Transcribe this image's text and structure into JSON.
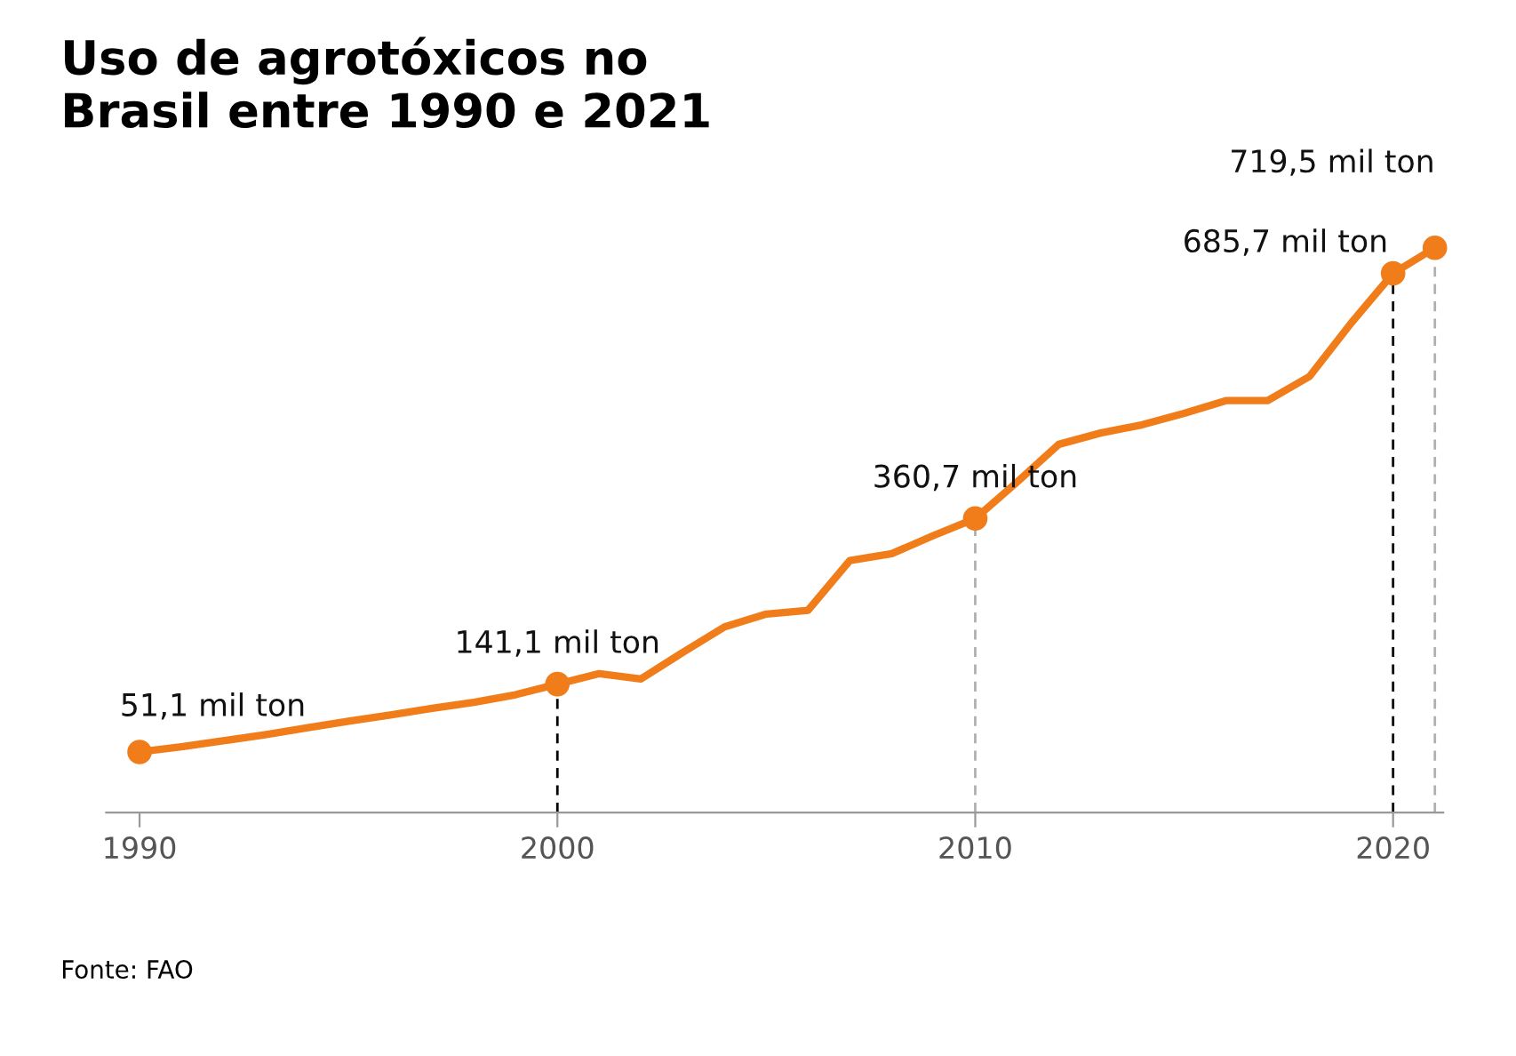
{
  "chart_data": {
    "type": "line",
    "title": "Uso de agrotóxicos no\nBrasil entre 1990 e 2021",
    "x": [
      1990,
      1991,
      1992,
      1993,
      1994,
      1995,
      1996,
      1997,
      1998,
      1999,
      2000,
      2001,
      2002,
      2003,
      2004,
      2005,
      2006,
      2007,
      2008,
      2009,
      2010,
      2011,
      2012,
      2013,
      2014,
      2015,
      2016,
      2017,
      2018,
      2019,
      2020,
      2021
    ],
    "series": [
      {
        "color": "#f07d1a",
        "values": [
          51.1,
          58,
          66,
          74,
          83,
          92,
          100,
          109,
          117,
          127,
          141.1,
          155,
          148,
          183,
          217,
          234,
          239,
          305,
          314,
          338,
          360.7,
          409,
          459,
          474,
          485,
          500,
          517,
          517,
          549,
          620,
          685.7,
          719.5
        ],
        "value_labels": [
          "51,1 mil ton",
          null,
          null,
          null,
          null,
          null,
          null,
          null,
          null,
          null,
          "141,1 mil ton",
          null,
          null,
          null,
          null,
          null,
          null,
          null,
          null,
          null,
          "360,7 mil ton",
          null,
          null,
          null,
          null,
          null,
          null,
          null,
          null,
          null,
          "685,7 mil ton",
          "719,5 mil ton"
        ]
      }
    ],
    "line_style": "solid",
    "xlim": [
      1989.2,
      2021.2
    ],
    "xticks": [
      1990,
      2000,
      2010,
      2020
    ],
    "tick_labels": "x",
    "grid": false,
    "ref_lines": [
      {
        "axis": "x",
        "value": 2000,
        "color": "#000000",
        "line_style": "dashed"
      },
      {
        "axis": "x",
        "value": 2010,
        "color": "#b0b0b0",
        "line_style": "dashed"
      },
      {
        "axis": "x",
        "value": 2020,
        "color": "#000000",
        "line_style": "dashed"
      },
      {
        "axis": "x",
        "value": 2021,
        "color": "#b0b0b0",
        "line_style": "dashed"
      }
    ],
    "annotations": [
      "Fonte: FAO"
    ]
  }
}
